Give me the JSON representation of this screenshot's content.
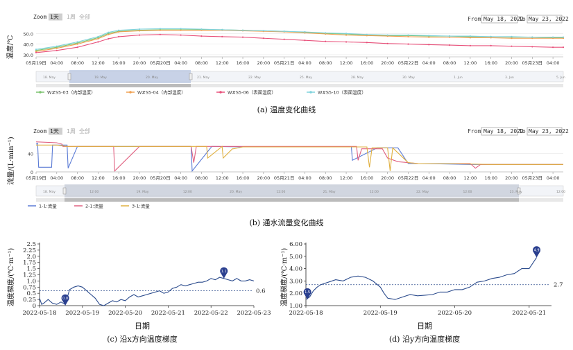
{
  "controls": {
    "zoom_label": "Zoom",
    "zoom_options": [
      "1天",
      "1周",
      "全部"
    ],
    "from_label": "From",
    "to_label": "To",
    "from_value": "May 18, 2022",
    "to_value": "May 23, 2022"
  },
  "chart_data": [
    {
      "id": "a",
      "type": "line",
      "caption": "(a) 温度变化曲线",
      "ylabel": "温度/℃",
      "yticks": [
        30.0,
        40.0,
        50.0
      ],
      "ylim": [
        28,
        58
      ],
      "xticks": [
        "05月19日",
        "04:00",
        "08:00",
        "12:00",
        "16:00",
        "20:00",
        "05月20日",
        "04:00",
        "08:00",
        "12:00",
        "16:00",
        "20:00",
        "05月21日",
        "04:00",
        "08:00",
        "12:00",
        "16:00",
        "20:00",
        "05月22日",
        "04:00",
        "08:00",
        "12:00",
        "16:00",
        "20:00",
        "05月23日",
        "04:00"
      ],
      "x_hours": [
        0,
        4,
        8,
        12,
        16,
        20,
        24,
        28,
        32,
        36,
        40,
        44,
        48,
        52,
        56,
        60,
        64,
        68,
        72,
        76,
        80,
        84,
        88,
        92,
        96,
        100
      ],
      "navigator_labels": [
        "18. May",
        "19. May",
        "20. May",
        "21. May",
        "22. May",
        "25. May",
        "28. May",
        "30. May",
        "1. Jun",
        "3. Jun",
        "5. Jun"
      ],
      "legend_position": "bottom",
      "series": [
        {
          "name": "W#S5-03（内部温度）",
          "color": "#7cc36f",
          "x": [
            0,
            4,
            8,
            12,
            14,
            16,
            20,
            24,
            28,
            32,
            36,
            40,
            44,
            48,
            52,
            56,
            60,
            64,
            68,
            72,
            76,
            80,
            84,
            88,
            92,
            96,
            100,
            102
          ],
          "y": [
            34,
            37,
            41,
            46,
            50,
            52,
            53,
            53.5,
            53.5,
            53.5,
            53.5,
            53,
            52.5,
            52,
            51,
            50,
            49.5,
            48.5,
            48,
            48,
            47.5,
            47.5,
            47,
            47,
            46.5,
            46.5,
            46,
            46
          ]
        },
        {
          "name": "W#S5-04（内部温度）",
          "color": "#f0a050",
          "x": [
            0,
            4,
            8,
            12,
            14,
            16,
            20,
            24,
            28,
            32,
            36,
            40,
            44,
            48,
            52,
            56,
            60,
            64,
            68,
            72,
            76,
            80,
            84,
            88,
            92,
            96,
            100,
            102
          ],
          "y": [
            33,
            36,
            40,
            45,
            49,
            51.5,
            52.5,
            53,
            53,
            53,
            53,
            52.5,
            52,
            51.5,
            50.5,
            49.5,
            48.5,
            48,
            47.5,
            47,
            46.5,
            46.5,
            46,
            46,
            45.5,
            45.5,
            45.5,
            45.5
          ]
        },
        {
          "name": "W#S5-06（表面温度）",
          "color": "#e8507a",
          "x": [
            0,
            4,
            8,
            12,
            14,
            16,
            20,
            24,
            28,
            32,
            36,
            40,
            44,
            48,
            52,
            56,
            60,
            64,
            68,
            72,
            76,
            80,
            84,
            88,
            92,
            96,
            100,
            102
          ],
          "y": [
            32,
            34,
            37,
            42,
            45,
            47,
            48.5,
            49,
            48.5,
            47.5,
            47,
            46.5,
            45.5,
            44.5,
            43.5,
            42.5,
            42,
            41.5,
            40.5,
            40,
            39.5,
            39,
            38.5,
            38.5,
            38,
            37.5,
            37,
            37
          ]
        },
        {
          "name": "W#S5-10（表面温度）",
          "color": "#7fd3dc",
          "x": [
            0,
            4,
            8,
            12,
            14,
            16,
            20,
            24,
            28,
            32,
            36,
            40,
            44,
            48,
            52,
            56,
            60,
            64,
            68,
            72,
            76,
            80,
            84,
            88,
            92,
            96,
            100,
            102
          ],
          "y": [
            35,
            38,
            42,
            47,
            51,
            53,
            54,
            54.5,
            54.5,
            54,
            53.5,
            53,
            52.5,
            52,
            51.5,
            50.5,
            50,
            49,
            48.5,
            48.5,
            48,
            47.5,
            47.5,
            47,
            47,
            46.5,
            46.5,
            46.5
          ]
        }
      ]
    },
    {
      "id": "b",
      "type": "line",
      "caption": "(b) 通水流量变化曲线",
      "ylabel": "流量/(L·min⁻¹)",
      "yticks": [
        0,
        40
      ],
      "ylim": [
        0,
        72
      ],
      "xticks": [
        "05月19日",
        "04:00",
        "08:00",
        "12:00",
        "16:00",
        "20:00",
        "05月20日",
        "04:00",
        "08:00",
        "12:00",
        "16:00",
        "20:00",
        "05月21日",
        "04:00",
        "08:00",
        "12:00",
        "16:00",
        "20:00",
        "05月22日",
        "04:00",
        "08:00",
        "12:00",
        "16:00",
        "20:00",
        "05月23日",
        "04:00"
      ],
      "x_hours": [
        0,
        4,
        8,
        12,
        16,
        20,
        24,
        28,
        32,
        36,
        40,
        44,
        48,
        52,
        56,
        60,
        64,
        68,
        72,
        76,
        80,
        84,
        88,
        92,
        96,
        100
      ],
      "navigator_labels": [
        "18. May",
        "12:00",
        "19. May",
        "12:00",
        "20. May",
        "12:00",
        "21. May",
        "12:00",
        "22. May",
        "12:00",
        "23. May",
        "12:00"
      ],
      "legend_position": "bottom-left",
      "series": [
        {
          "name": "1-1:流量",
          "color": "#5b7bd5",
          "x": [
            0,
            0.3,
            0.5,
            3,
            3.2,
            6,
            6.2,
            8,
            14,
            15,
            15.2,
            20,
            30,
            30.2,
            34,
            34.2,
            40,
            60,
            61,
            61.2,
            66,
            70,
            72,
            74,
            80,
            84,
            88,
            92,
            96,
            100,
            102
          ],
          "y": [
            60,
            62,
            10,
            10,
            58,
            58,
            8,
            55,
            55,
            55,
            55,
            55,
            55,
            2,
            55,
            55,
            54,
            54,
            54,
            25,
            52,
            52,
            18,
            18,
            17,
            16,
            16,
            16,
            16,
            16,
            16
          ]
        },
        {
          "name": "2-1:流量",
          "color": "#e06080",
          "x": [
            0,
            4,
            5,
            5.2,
            14,
            15,
            15.2,
            20,
            30,
            30.5,
            31,
            40,
            48,
            56,
            62,
            62.3,
            63,
            67,
            68,
            70,
            74,
            80,
            84,
            85,
            86,
            90,
            96,
            100,
            102
          ],
          "y": [
            65,
            63,
            60,
            55,
            55,
            55,
            2,
            55,
            55,
            20,
            55,
            55,
            55,
            55,
            55,
            25,
            50,
            50,
            30,
            22,
            18,
            18,
            18,
            8,
            16,
            16,
            16,
            16,
            16
          ]
        },
        {
          "name": "3-1:流量",
          "color": "#e0b040",
          "x": [
            0,
            4,
            6,
            14,
            15,
            15.2,
            20,
            32,
            33,
            33.2,
            36,
            36.2,
            38,
            38.2,
            40,
            60,
            64,
            64.5,
            65,
            68,
            68.5,
            69,
            72,
            74,
            80,
            84,
            88,
            92,
            96,
            100,
            102
          ],
          "y": [
            58,
            58,
            55,
            55,
            55,
            55,
            55,
            55,
            55,
            30,
            55,
            30,
            50,
            50,
            54,
            54,
            54,
            10,
            52,
            52,
            2,
            52,
            20,
            18,
            18,
            17,
            16,
            16,
            16,
            16,
            16
          ]
        }
      ]
    },
    {
      "id": "c",
      "type": "line",
      "caption": "(c) 沿x方向温度梯度",
      "xlabel": "日期",
      "ylabel": "温度梯度/(℃·m⁻¹)",
      "yticks": [
        "0",
        "0.25",
        "0.5",
        "0.75",
        "1.0",
        "1.25",
        "1.5",
        "1.75",
        "2.0",
        "2.25",
        "2.5"
      ],
      "ylim": [
        0,
        2.5
      ],
      "xticks": [
        "2022-05-18",
        "2022-05-19",
        "2022-05-20",
        "2022-05-21",
        "2022-05-22",
        "2022-05-23"
      ],
      "reference_line": {
        "value": 0.6,
        "label": "0.6"
      },
      "markers": [
        {
          "label": "0.0",
          "x": 0.6,
          "y": 0
        },
        {
          "label": "1.1",
          "x": 4.3,
          "y": 1.1
        }
      ],
      "series": [
        {
          "name": "",
          "color": "#2a4a8c",
          "x": [
            0,
            0.05,
            0.1,
            0.2,
            0.3,
            0.4,
            0.5,
            0.6,
            0.7,
            0.8,
            0.9,
            1.0,
            1.1,
            1.2,
            1.3,
            1.4,
            1.5,
            1.6,
            1.7,
            1.8,
            1.9,
            2.0,
            2.1,
            2.2,
            2.3,
            2.4,
            2.5,
            2.6,
            2.7,
            2.8,
            2.9,
            3.0,
            3.1,
            3.2,
            3.3,
            3.4,
            3.5,
            3.6,
            3.7,
            3.8,
            3.9,
            4.0,
            4.1,
            4.2,
            4.3,
            4.4,
            4.5,
            4.6,
            4.7,
            4.8,
            4.9,
            5.0
          ],
          "y": [
            0.3,
            0.05,
            0.1,
            0.25,
            0.1,
            0.05,
            0.15,
            0.05,
            0.65,
            0.75,
            0.8,
            0.75,
            0.6,
            0.45,
            0.3,
            0.05,
            0.0,
            0.1,
            0.2,
            0.15,
            0.25,
            0.2,
            0.35,
            0.45,
            0.35,
            0.4,
            0.45,
            0.5,
            0.55,
            0.6,
            0.5,
            0.55,
            0.7,
            0.75,
            0.85,
            0.8,
            0.85,
            0.9,
            0.95,
            0.95,
            1.0,
            1.1,
            1.05,
            1.15,
            1.1,
            1.05,
            1.0,
            1.1,
            1.0,
            1.0,
            1.05,
            1.0
          ]
        }
      ]
    },
    {
      "id": "d",
      "type": "line",
      "caption": "(d) 沿y方向温度梯度",
      "xlabel": "日期",
      "ylabel": "温度梯度/(℃·m⁻¹)",
      "yticks": [
        "1.00",
        "2.00",
        "3.00",
        "4.00",
        "5.00",
        "6.00"
      ],
      "ylim": [
        1.0,
        6.0
      ],
      "xticks": [
        "2022-05-18",
        "2022-05-19",
        "2022-05-20",
        "2022-05-21"
      ],
      "reference_line": {
        "value": 2.7,
        "label": "2.7"
      },
      "markers": [
        {
          "label": "1.5",
          "x": 0.02,
          "y": 1.5
        },
        {
          "label": "4.9",
          "x": 3.1,
          "y": 4.9
        }
      ],
      "series": [
        {
          "name": "",
          "color": "#2a4a8c",
          "x": [
            0,
            0.05,
            0.1,
            0.15,
            0.2,
            0.3,
            0.4,
            0.5,
            0.6,
            0.7,
            0.8,
            0.9,
            1.0,
            1.05,
            1.1,
            1.2,
            1.3,
            1.4,
            1.5,
            1.6,
            1.7,
            1.8,
            1.9,
            2.0,
            2.1,
            2.2,
            2.3,
            2.4,
            2.5,
            2.6,
            2.7,
            2.8,
            2.9,
            3.0,
            3.1
          ],
          "y": [
            1.5,
            1.7,
            2.2,
            2.5,
            2.7,
            2.9,
            3.1,
            3.0,
            3.3,
            3.4,
            3.3,
            3.0,
            2.5,
            2.0,
            1.6,
            1.5,
            1.7,
            1.9,
            1.8,
            1.85,
            1.9,
            2.1,
            2.1,
            2.3,
            2.3,
            2.5,
            2.9,
            3.0,
            3.2,
            3.3,
            3.5,
            3.6,
            4.0,
            4.0,
            4.9
          ]
        }
      ]
    }
  ]
}
